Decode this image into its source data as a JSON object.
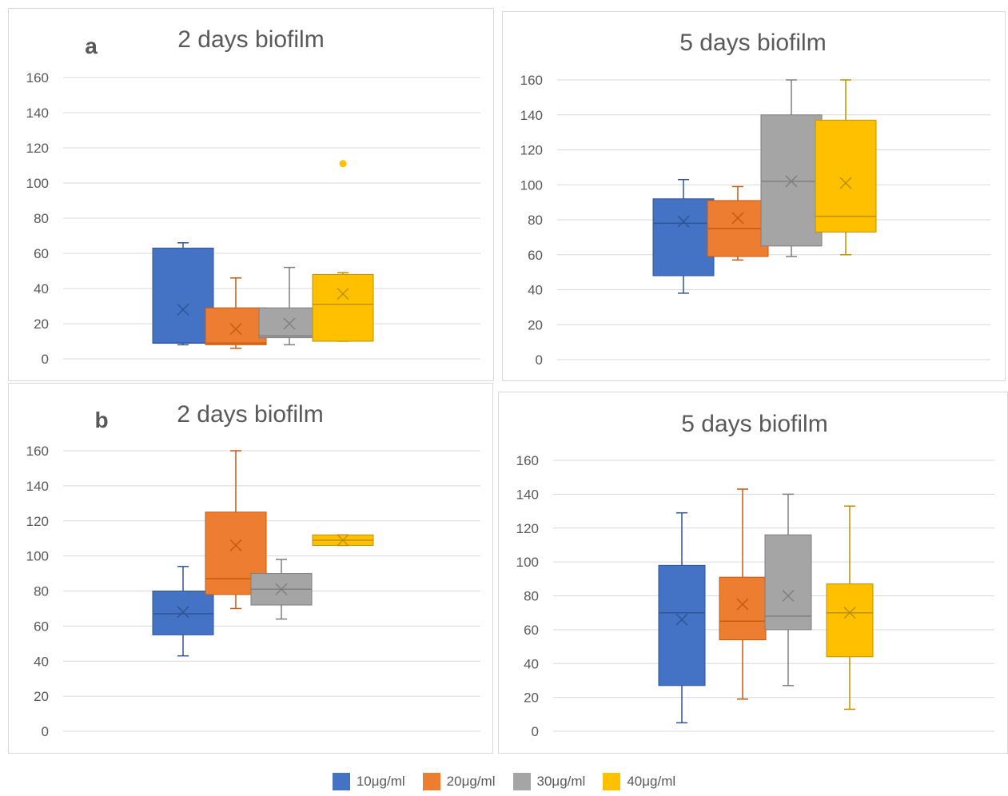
{
  "colors": {
    "10": "#4472C4",
    "20": "#ED7D31",
    "30": "#A5A5A5",
    "40": "#FFC000"
  },
  "legend": [
    {
      "label": "10μg/ml",
      "color": "#4472C4"
    },
    {
      "label": "20μg/ml",
      "color": "#ED7D31"
    },
    {
      "label": "30μg/ml",
      "color": "#A5A5A5"
    },
    {
      "label": "40μg/ml",
      "color": "#FFC000"
    }
  ],
  "chart_data": [
    {
      "type": "box",
      "panel_label": "a",
      "title": "2 days biofilm",
      "ylim": [
        0,
        160
      ],
      "yticks": [
        0,
        20,
        40,
        60,
        80,
        100,
        120,
        140,
        160
      ],
      "grid": true,
      "series": [
        {
          "name": "10μg/ml",
          "min": 8,
          "q1": 9,
          "median": 9,
          "q3": 63,
          "max": 66,
          "mean": 28,
          "outliers": []
        },
        {
          "name": "20μg/ml",
          "min": 6,
          "q1": 8,
          "median": 9,
          "q3": 29,
          "max": 46,
          "mean": 17,
          "outliers": []
        },
        {
          "name": "30μg/ml",
          "min": 8,
          "q1": 12,
          "median": 13,
          "q3": 29,
          "max": 52,
          "mean": 20,
          "outliers": []
        },
        {
          "name": "40μg/ml",
          "min": 10,
          "q1": 10,
          "median": 31,
          "q3": 48,
          "max": 49,
          "mean": 37,
          "outliers": [
            111
          ]
        }
      ]
    },
    {
      "type": "box",
      "panel_label": "",
      "title": "5 days biofilm",
      "ylim": [
        0,
        160
      ],
      "yticks": [
        0,
        20,
        40,
        60,
        80,
        100,
        120,
        140,
        160
      ],
      "grid": true,
      "series": [
        {
          "name": "10μg/ml",
          "min": 38,
          "q1": 48,
          "median": 78,
          "q3": 92,
          "max": 103,
          "mean": 79,
          "outliers": []
        },
        {
          "name": "20μg/ml",
          "min": 57,
          "q1": 59,
          "median": 75,
          "q3": 91,
          "max": 99,
          "mean": 81,
          "outliers": []
        },
        {
          "name": "30μg/ml",
          "min": 59,
          "q1": 65,
          "median": 102,
          "q3": 140,
          "max": 160,
          "mean": 102,
          "outliers": []
        },
        {
          "name": "40μg/ml",
          "min": 60,
          "q1": 73,
          "median": 82,
          "q3": 137,
          "max": 160,
          "mean": 101,
          "outliers": []
        }
      ]
    },
    {
      "type": "box",
      "panel_label": "b",
      "title": "2 days biofilm",
      "ylim": [
        0,
        160
      ],
      "yticks": [
        0,
        20,
        40,
        60,
        80,
        100,
        120,
        140,
        160
      ],
      "grid": true,
      "series": [
        {
          "name": "10μg/ml",
          "min": 43,
          "q1": 55,
          "median": 67,
          "q3": 80,
          "max": 94,
          "mean": 68,
          "outliers": []
        },
        {
          "name": "20μg/ml",
          "min": 70,
          "q1": 78,
          "median": 87,
          "q3": 125,
          "max": 160,
          "mean": 106,
          "outliers": []
        },
        {
          "name": "30μg/ml",
          "min": 64,
          "q1": 72,
          "median": 81,
          "q3": 90,
          "max": 98,
          "mean": 81,
          "outliers": []
        },
        {
          "name": "40μg/ml",
          "min": 106,
          "q1": 106,
          "median": 109,
          "q3": 112,
          "max": 112,
          "mean": 109,
          "outliers": []
        }
      ]
    },
    {
      "type": "box",
      "panel_label": "",
      "title": "5 days biofilm",
      "ylim": [
        0,
        160
      ],
      "yticks": [
        0,
        20,
        40,
        60,
        80,
        100,
        120,
        140,
        160
      ],
      "grid": true,
      "series": [
        {
          "name": "10μg/ml",
          "min": 5,
          "q1": 27,
          "median": 70,
          "q3": 98,
          "max": 129,
          "mean": 66,
          "outliers": []
        },
        {
          "name": "20μg/ml",
          "min": 19,
          "q1": 54,
          "median": 65,
          "q3": 91,
          "max": 143,
          "mean": 75,
          "outliers": []
        },
        {
          "name": "30μg/ml",
          "min": 27,
          "q1": 60,
          "median": 68,
          "q3": 116,
          "max": 140,
          "mean": 80,
          "outliers": []
        },
        {
          "name": "40μg/ml",
          "min": 13,
          "q1": 44,
          "median": 70,
          "q3": 87,
          "max": 133,
          "mean": 70,
          "outliers": []
        }
      ]
    }
  ]
}
